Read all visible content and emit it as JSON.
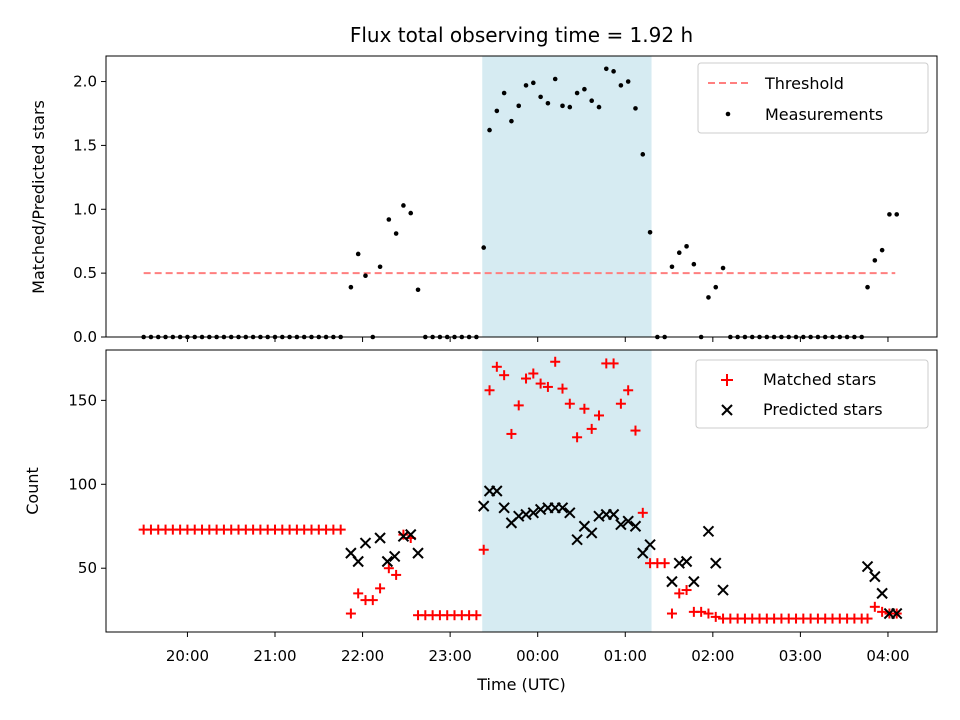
{
  "chart_data": [
    {
      "type": "scatter",
      "title": "Flux total observing time = 1.92 h",
      "xlabel": "",
      "ylabel": "Matched/Predicted stars",
      "ylim": [
        0,
        2.2
      ],
      "yticks": [
        0.0,
        0.5,
        1.0,
        1.5,
        2.0
      ],
      "ytick_labels": [
        "0.0",
        "0.5",
        "1.0",
        "1.5",
        "2.0"
      ],
      "xlim": [
        -4.93,
        4.56
      ],
      "xticks": [
        -4,
        -3,
        -2,
        -1,
        0,
        1,
        2,
        3,
        4
      ],
      "shaded_span": {
        "start": "23:22",
        "end": "01:18",
        "color": "#add8e6"
      },
      "legend": {
        "placement": "top-right",
        "entries": [
          "Threshold",
          "Measurements"
        ]
      },
      "threshold": {
        "name": "Threshold",
        "y": 0.5,
        "x_start": "19:30",
        "x_end": "04:05",
        "color": "#ff7f7f"
      },
      "measurements": {
        "name": "Measurements",
        "color": "#000000",
        "points": [
          [
            "19:30",
            0
          ],
          [
            "19:35",
            0
          ],
          [
            "19:40",
            0
          ],
          [
            "19:45",
            0
          ],
          [
            "19:50",
            0
          ],
          [
            "19:55",
            0
          ],
          [
            "20:00",
            0
          ],
          [
            "20:05",
            0
          ],
          [
            "20:10",
            0
          ],
          [
            "20:15",
            0
          ],
          [
            "20:20",
            0
          ],
          [
            "20:25",
            0
          ],
          [
            "20:30",
            0
          ],
          [
            "20:35",
            0
          ],
          [
            "20:40",
            0
          ],
          [
            "20:45",
            0
          ],
          [
            "20:50",
            0
          ],
          [
            "20:55",
            0
          ],
          [
            "21:00",
            0
          ],
          [
            "21:05",
            0
          ],
          [
            "21:10",
            0
          ],
          [
            "21:15",
            0
          ],
          [
            "21:20",
            0
          ],
          [
            "21:25",
            0
          ],
          [
            "21:30",
            0
          ],
          [
            "21:35",
            0
          ],
          [
            "21:40",
            0
          ],
          [
            "21:45",
            0
          ],
          [
            "21:52",
            0.39
          ],
          [
            "21:57",
            0.65
          ],
          [
            "22:02",
            0.48
          ],
          [
            "22:07",
            0
          ],
          [
            "22:12",
            0.55
          ],
          [
            "22:18",
            0.92
          ],
          [
            "22:23",
            0.81
          ],
          [
            "22:28",
            1.03
          ],
          [
            "22:33",
            0.97
          ],
          [
            "22:38",
            0.37
          ],
          [
            "22:43",
            0
          ],
          [
            "22:48",
            0
          ],
          [
            "22:53",
            0
          ],
          [
            "22:58",
            0
          ],
          [
            "23:03",
            0
          ],
          [
            "23:08",
            0
          ],
          [
            "23:13",
            0
          ],
          [
            "23:18",
            0
          ],
          [
            "23:23",
            0.7
          ],
          [
            "23:27",
            1.62
          ],
          [
            "23:32",
            1.77
          ],
          [
            "23:37",
            1.91
          ],
          [
            "23:42",
            1.69
          ],
          [
            "23:47",
            1.81
          ],
          [
            "23:52",
            1.97
          ],
          [
            "23:57",
            1.99
          ],
          [
            "00:02",
            1.88
          ],
          [
            "00:07",
            1.83
          ],
          [
            "00:12",
            2.02
          ],
          [
            "00:17",
            1.81
          ],
          [
            "00:22",
            1.8
          ],
          [
            "00:27",
            1.91
          ],
          [
            "00:32",
            1.94
          ],
          [
            "00:37",
            1.85
          ],
          [
            "00:42",
            1.8
          ],
          [
            "00:47",
            2.1
          ],
          [
            "00:52",
            2.08
          ],
          [
            "00:57",
            1.97
          ],
          [
            "01:02",
            2.0
          ],
          [
            "01:07",
            1.79
          ],
          [
            "01:12",
            1.43
          ],
          [
            "01:17",
            0.82
          ],
          [
            "01:22",
            0
          ],
          [
            "01:27",
            0
          ],
          [
            "01:32",
            0.55
          ],
          [
            "01:37",
            0.66
          ],
          [
            "01:42",
            0.71
          ],
          [
            "01:47",
            0.57
          ],
          [
            "01:52",
            0
          ],
          [
            "01:57",
            0.31
          ],
          [
            "02:02",
            0.39
          ],
          [
            "02:07",
            0.54
          ],
          [
            "02:12",
            0
          ],
          [
            "02:17",
            0
          ],
          [
            "02:22",
            0
          ],
          [
            "02:27",
            0
          ],
          [
            "02:32",
            0
          ],
          [
            "02:37",
            0
          ],
          [
            "02:42",
            0
          ],
          [
            "02:47",
            0
          ],
          [
            "02:52",
            0
          ],
          [
            "02:57",
            0
          ],
          [
            "03:02",
            0
          ],
          [
            "03:07",
            0
          ],
          [
            "03:12",
            0
          ],
          [
            "03:17",
            0
          ],
          [
            "03:22",
            0
          ],
          [
            "03:27",
            0
          ],
          [
            "03:32",
            0
          ],
          [
            "03:37",
            0
          ],
          [
            "03:42",
            0
          ],
          [
            "03:46",
            0.39
          ],
          [
            "03:51",
            0.6
          ],
          [
            "03:56",
            0.68
          ],
          [
            "04:01",
            0.96
          ],
          [
            "04:06",
            0.96
          ]
        ]
      }
    },
    {
      "type": "scatter",
      "title": "",
      "xlabel": "Time (UTC)",
      "ylabel": "Count",
      "ylim": [
        12,
        180
      ],
      "yticks": [
        50,
        100,
        150
      ],
      "ytick_labels": [
        "50",
        "100",
        "150"
      ],
      "xlim": [
        -4.93,
        4.56
      ],
      "xticks": [
        -4,
        -3,
        -2,
        -1,
        0,
        1,
        2,
        3,
        4
      ],
      "xtick_labels": [
        "20:00",
        "21:00",
        "22:00",
        "23:00",
        "00:00",
        "01:00",
        "02:00",
        "03:00",
        "04:00"
      ],
      "shaded_span": {
        "start": "23:22",
        "end": "01:18",
        "color": "#add8e6"
      },
      "legend": {
        "placement": "top-right",
        "entries": [
          "Matched stars",
          "Predicted stars"
        ]
      },
      "series": [
        {
          "name": "Matched stars",
          "marker": "+",
          "color": "#ff0000",
          "points": [
            [
              "19:30",
              73
            ],
            [
              "19:35",
              73
            ],
            [
              "19:40",
              73
            ],
            [
              "19:45",
              73
            ],
            [
              "19:50",
              73
            ],
            [
              "19:55",
              73
            ],
            [
              "20:00",
              73
            ],
            [
              "20:05",
              73
            ],
            [
              "20:10",
              73
            ],
            [
              "20:15",
              73
            ],
            [
              "20:20",
              73
            ],
            [
              "20:25",
              73
            ],
            [
              "20:30",
              73
            ],
            [
              "20:35",
              73
            ],
            [
              "20:40",
              73
            ],
            [
              "20:45",
              73
            ],
            [
              "20:50",
              73
            ],
            [
              "20:55",
              73
            ],
            [
              "21:00",
              73
            ],
            [
              "21:05",
              73
            ],
            [
              "21:10",
              73
            ],
            [
              "21:15",
              73
            ],
            [
              "21:20",
              73
            ],
            [
              "21:25",
              73
            ],
            [
              "21:30",
              73
            ],
            [
              "21:35",
              73
            ],
            [
              "21:40",
              73
            ],
            [
              "21:45",
              73
            ],
            [
              "21:52",
              23
            ],
            [
              "21:57",
              35
            ],
            [
              "22:02",
              31
            ],
            [
              "22:07",
              31
            ],
            [
              "22:12",
              38
            ],
            [
              "22:18",
              50
            ],
            [
              "22:23",
              46
            ],
            [
              "22:28",
              70
            ],
            [
              "22:33",
              68
            ],
            [
              "22:38",
              22
            ],
            [
              "22:43",
              22
            ],
            [
              "22:48",
              22
            ],
            [
              "22:53",
              22
            ],
            [
              "22:58",
              22
            ],
            [
              "23:03",
              22
            ],
            [
              "23:08",
              22
            ],
            [
              "23:13",
              22
            ],
            [
              "23:18",
              22
            ],
            [
              "23:23",
              61
            ],
            [
              "23:27",
              156
            ],
            [
              "23:32",
              170
            ],
            [
              "23:37",
              165
            ],
            [
              "23:42",
              130
            ],
            [
              "23:47",
              147
            ],
            [
              "23:52",
              163
            ],
            [
              "23:57",
              166
            ],
            [
              "00:02",
              160
            ],
            [
              "00:07",
              158
            ],
            [
              "00:12",
              173
            ],
            [
              "00:17",
              157
            ],
            [
              "00:22",
              148
            ],
            [
              "00:27",
              128
            ],
            [
              "00:32",
              145
            ],
            [
              "00:37",
              133
            ],
            [
              "00:42",
              141
            ],
            [
              "00:47",
              172
            ],
            [
              "00:52",
              172
            ],
            [
              "00:57",
              148
            ],
            [
              "01:02",
              156
            ],
            [
              "01:07",
              132
            ],
            [
              "01:12",
              83
            ],
            [
              "01:17",
              53
            ],
            [
              "01:22",
              53
            ],
            [
              "01:27",
              53
            ],
            [
              "01:32",
              23
            ],
            [
              "01:37",
              35
            ],
            [
              "01:42",
              37
            ],
            [
              "01:47",
              24
            ],
            [
              "01:52",
              24
            ],
            [
              "01:57",
              23
            ],
            [
              "02:02",
              21
            ],
            [
              "02:07",
              20
            ],
            [
              "02:12",
              20
            ],
            [
              "02:17",
              20
            ],
            [
              "02:22",
              20
            ],
            [
              "02:27",
              20
            ],
            [
              "02:32",
              20
            ],
            [
              "02:37",
              20
            ],
            [
              "02:42",
              20
            ],
            [
              "02:47",
              20
            ],
            [
              "02:52",
              20
            ],
            [
              "02:57",
              20
            ],
            [
              "03:02",
              20
            ],
            [
              "03:07",
              20
            ],
            [
              "03:12",
              20
            ],
            [
              "03:17",
              20
            ],
            [
              "03:22",
              20
            ],
            [
              "03:27",
              20
            ],
            [
              "03:32",
              20
            ],
            [
              "03:37",
              20
            ],
            [
              "03:42",
              20
            ],
            [
              "03:46",
              20
            ],
            [
              "03:51",
              27
            ],
            [
              "03:56",
              24
            ],
            [
              "04:01",
              23
            ],
            [
              "04:06",
              23
            ]
          ]
        },
        {
          "name": "Predicted stars",
          "marker": "x",
          "color": "#000000",
          "points": [
            [
              "21:52",
              59
            ],
            [
              "21:57",
              54
            ],
            [
              "22:02",
              65
            ],
            [
              "22:12",
              68
            ],
            [
              "22:17",
              54
            ],
            [
              "22:22",
              57
            ],
            [
              "22:28",
              69
            ],
            [
              "22:33",
              70
            ],
            [
              "22:38",
              59
            ],
            [
              "23:23",
              87
            ],
            [
              "23:27",
              96
            ],
            [
              "23:32",
              96
            ],
            [
              "23:37",
              86
            ],
            [
              "23:42",
              77
            ],
            [
              "23:47",
              81
            ],
            [
              "23:52",
              82
            ],
            [
              "23:57",
              83
            ],
            [
              "00:02",
              85
            ],
            [
              "00:07",
              86
            ],
            [
              "00:12",
              86
            ],
            [
              "00:17",
              86
            ],
            [
              "00:22",
              83
            ],
            [
              "00:27",
              67
            ],
            [
              "00:32",
              75
            ],
            [
              "00:37",
              71
            ],
            [
              "00:42",
              81
            ],
            [
              "00:47",
              82
            ],
            [
              "00:52",
              82
            ],
            [
              "00:57",
              76
            ],
            [
              "01:02",
              78
            ],
            [
              "01:07",
              75
            ],
            [
              "01:12",
              59
            ],
            [
              "01:17",
              64
            ],
            [
              "01:32",
              42
            ],
            [
              "01:37",
              53
            ],
            [
              "01:42",
              54
            ],
            [
              "01:47",
              42
            ],
            [
              "01:57",
              72
            ],
            [
              "02:02",
              53
            ],
            [
              "02:07",
              37
            ],
            [
              "03:46",
              51
            ],
            [
              "03:51",
              45
            ],
            [
              "03:56",
              35
            ],
            [
              "04:01",
              23
            ],
            [
              "04:06",
              23
            ]
          ]
        }
      ]
    }
  ]
}
